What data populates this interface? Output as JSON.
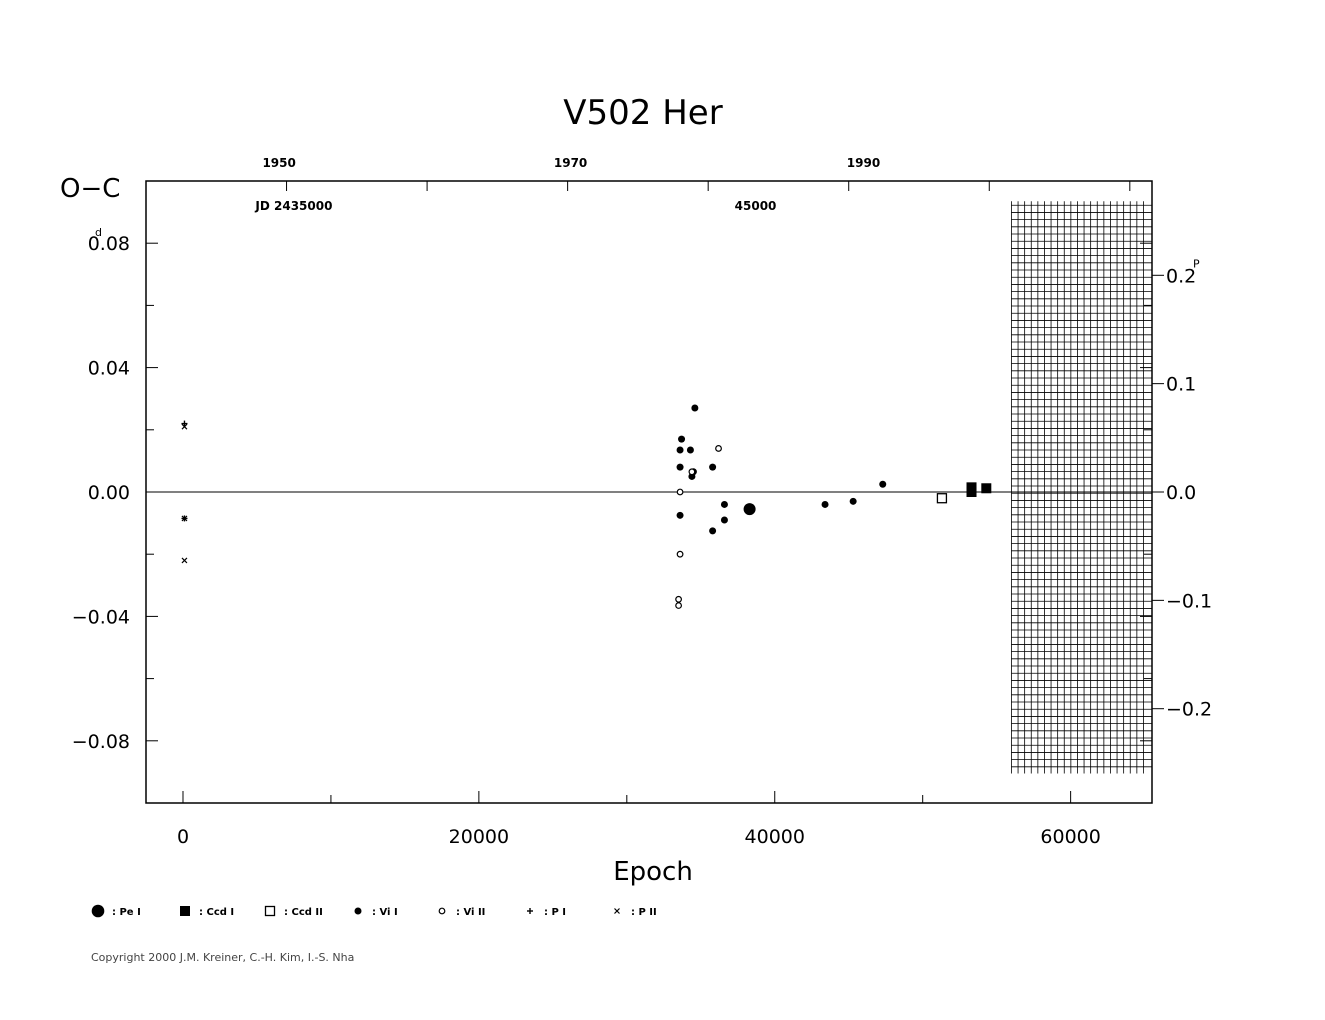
{
  "chart_data": {
    "type": "scatter",
    "title": "V502 Her",
    "xlabel": "Epoch",
    "ylabel": "O−C",
    "ylabel_unit": "d",
    "y2_unit": "P",
    "xlim": [
      -2500,
      65500
    ],
    "ylim": [
      -0.1,
      0.1
    ],
    "x_ticks": [
      {
        "value": 0,
        "label": "0"
      },
      {
        "value": 20000,
        "label": "20000"
      },
      {
        "value": 40000,
        "label": "40000"
      },
      {
        "value": 60000,
        "label": "60000"
      }
    ],
    "y_ticks": [
      {
        "value": 0.08,
        "label": "0.08"
      },
      {
        "value": 0.04,
        "label": "0.04"
      },
      {
        "value": 0.0,
        "label": "0.00"
      },
      {
        "value": -0.04,
        "label": "−0.04"
      },
      {
        "value": -0.08,
        "label": "−0.08"
      }
    ],
    "y2_ticks": [
      {
        "value": 0.2,
        "label": "0.2"
      },
      {
        "value": 0.1,
        "label": "0.1"
      },
      {
        "value": 0.0,
        "label": "0.0"
      },
      {
        "value": -0.1,
        "label": "−0.1"
      },
      {
        "value": -0.2,
        "label": "−0.2"
      }
    ],
    "period_days": 0.3484,
    "year_ticks": [
      {
        "value": 1950,
        "label": "1950"
      },
      {
        "value": 1970,
        "label": "1970"
      },
      {
        "value": 1990,
        "label": "1990"
      }
    ],
    "jd_labels": [
      {
        "value": 2435000,
        "label": "JD  2435000"
      },
      {
        "value": 2445000,
        "label": "45000"
      }
    ],
    "top_axis_epoch_ticks": [
      -2500,
      7000,
      16500,
      26000,
      35500,
      45000,
      54500,
      64000
    ],
    "top_label_epochs": {
      "1950": 6500,
      "1970": 26200,
      "1990": 46000,
      "2435000": 7500,
      "2445000": 38700
    },
    "future_region_start_epoch": 56000,
    "reference_line": 0.0,
    "series": [
      {
        "name": "Pe I",
        "marker": "filled-circle-large",
        "points": [
          [
            38300,
            -0.0055
          ]
        ]
      },
      {
        "name": "Ccd I",
        "marker": "filled-square",
        "points": [
          [
            53300,
            0.0015
          ],
          [
            53300,
            0.0
          ],
          [
            54300,
            0.0012
          ]
        ]
      },
      {
        "name": "Ccd II",
        "marker": "open-square",
        "points": [
          [
            51300,
            -0.002
          ]
        ]
      },
      {
        "name": "Vi I",
        "marker": "filled-circle-small",
        "points": [
          [
            33700,
            0.017
          ],
          [
            33600,
            0.0135
          ],
          [
            34300,
            0.0135
          ],
          [
            33600,
            0.008
          ],
          [
            34500,
            0.0065
          ],
          [
            34400,
            0.005
          ],
          [
            34600,
            0.027
          ],
          [
            35800,
            0.008
          ],
          [
            33600,
            -0.0075
          ],
          [
            35800,
            -0.0125
          ],
          [
            36600,
            -0.004
          ],
          [
            36600,
            -0.009
          ],
          [
            43400,
            -0.004
          ],
          [
            45300,
            -0.003
          ],
          [
            47300,
            0.0025
          ]
        ]
      },
      {
        "name": "Vi II",
        "marker": "open-circle-small",
        "points": [
          [
            33600,
            0.0
          ],
          [
            33600,
            -0.02
          ],
          [
            33500,
            -0.0345
          ],
          [
            33500,
            -0.0365
          ],
          [
            36200,
            0.014
          ],
          [
            34400,
            0.0065
          ]
        ]
      },
      {
        "name": "P I",
        "marker": "plus",
        "points": [
          [
            100,
            0.022
          ],
          [
            100,
            -0.0085
          ]
        ]
      },
      {
        "name": "P II",
        "marker": "cross",
        "points": [
          [
            100,
            0.021
          ],
          [
            100,
            -0.022
          ],
          [
            100,
            -0.0085
          ]
        ]
      }
    ],
    "legend": [
      {
        "symbol": "filled-circle-large",
        "label": ": Pe I"
      },
      {
        "symbol": "filled-square",
        "label": ": Ccd I"
      },
      {
        "symbol": "open-square",
        "label": ": Ccd II"
      },
      {
        "symbol": "filled-circle-small",
        "label": ": Vi I"
      },
      {
        "symbol": "open-circle-small",
        "label": ": Vi II"
      },
      {
        "symbol": "plus",
        "label": ": P I"
      },
      {
        "symbol": "cross",
        "label": ": P II"
      }
    ],
    "legend_position": "bottom-left",
    "grid": false,
    "colors": {
      "ink": "#000000",
      "background": "#ffffff"
    }
  },
  "copyright": "Copyright 2000 J.M. Kreiner, C.-H. Kim, I.-S. Nha"
}
